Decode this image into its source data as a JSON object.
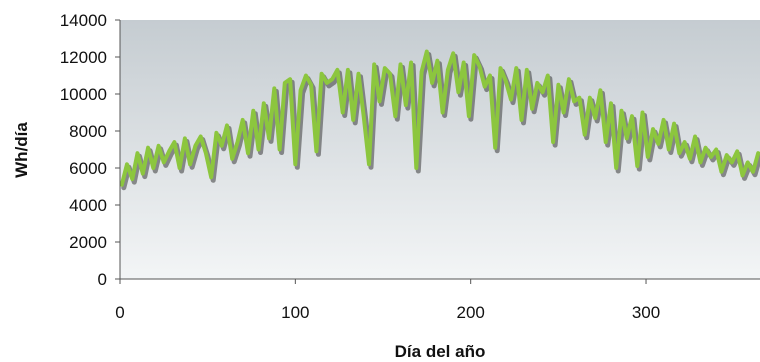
{
  "chart_data": {
    "type": "line",
    "title": "",
    "xlabel": "Día del año",
    "ylabel": "Wh/día",
    "xlim": [
      0,
      365
    ],
    "ylim": [
      0,
      14000
    ],
    "x_ticks": [
      0,
      100,
      200,
      300
    ],
    "y_ticks": [
      0,
      2000,
      4000,
      6000,
      8000,
      10000,
      12000,
      14000
    ],
    "x_tick_labels": [
      "0",
      "100",
      "200",
      "300"
    ],
    "y_tick_labels": [
      "0",
      "2000",
      "4000",
      "6000",
      "8000",
      "10000",
      "12000",
      "14000"
    ],
    "grid": false,
    "legend": "none",
    "colors": {
      "line": "#8cc63e",
      "shadow": "#3a3a3a",
      "plot_top": "#c5ccd1",
      "plot_bottom": "#f3f5f6"
    },
    "series": [
      {
        "x": [
          1,
          4,
          7,
          10,
          13,
          16,
          19,
          22,
          25,
          28,
          31,
          34,
          37,
          40,
          43,
          46,
          49,
          52,
          55,
          58,
          61,
          64,
          67,
          70,
          73,
          76,
          79,
          82,
          85,
          88,
          91,
          94,
          97,
          100,
          103,
          106,
          109,
          112,
          115,
          118,
          121,
          124,
          127,
          130,
          133,
          136,
          139,
          142,
          145,
          148,
          151,
          154,
          157,
          160,
          163,
          166,
          169,
          172,
          175,
          178,
          181,
          184,
          187,
          190,
          193,
          196,
          199,
          202,
          205,
          208,
          211,
          214,
          217,
          220,
          223,
          226,
          229,
          232,
          235,
          238,
          241,
          244,
          247,
          250,
          253,
          256,
          259,
          262,
          265,
          268,
          271,
          274,
          277,
          280,
          283,
          286,
          289,
          292,
          295,
          298,
          301,
          304,
          307,
          310,
          313,
          316,
          319,
          322,
          325,
          328,
          331,
          334,
          337,
          340,
          343,
          346,
          349,
          352,
          355,
          358,
          361,
          364
        ],
        "y": [
          5100,
          6200,
          5400,
          6800,
          5700,
          7100,
          6000,
          7200,
          6300,
          6900,
          7400,
          6000,
          7600,
          6200,
          7200,
          7700,
          6800,
          5500,
          7900,
          7200,
          8300,
          6500,
          7400,
          8600,
          6800,
          9100,
          7000,
          9500,
          7600,
          10300,
          7000,
          10600,
          10800,
          6200,
          10200,
          11000,
          10500,
          6900,
          11100,
          10600,
          10800,
          11300,
          9000,
          11300,
          8600,
          11100,
          8800,
          6200,
          11600,
          9600,
          11400,
          11100,
          8800,
          11600,
          9400,
          11700,
          6000,
          11200,
          12300,
          10600,
          11800,
          9000,
          11300,
          12200,
          10100,
          11700,
          8800,
          12100,
          11500,
          10400,
          11000,
          7100,
          11400,
          10700,
          9700,
          11400,
          8600,
          11300,
          9200,
          10600,
          10100,
          11000,
          7400,
          10500,
          9000,
          10800,
          9600,
          9800,
          7800,
          9800,
          8700,
          10200,
          7400,
          9500,
          6000,
          9100,
          7600,
          8800,
          6100,
          9000,
          6600,
          8100,
          7300,
          8600,
          7000,
          8400,
          6800,
          7400,
          6500,
          7700,
          6300,
          7100,
          6600,
          7000,
          5800,
          6700,
          6300,
          6900,
          5600,
          6300,
          5800,
          6800
        ]
      }
    ]
  }
}
